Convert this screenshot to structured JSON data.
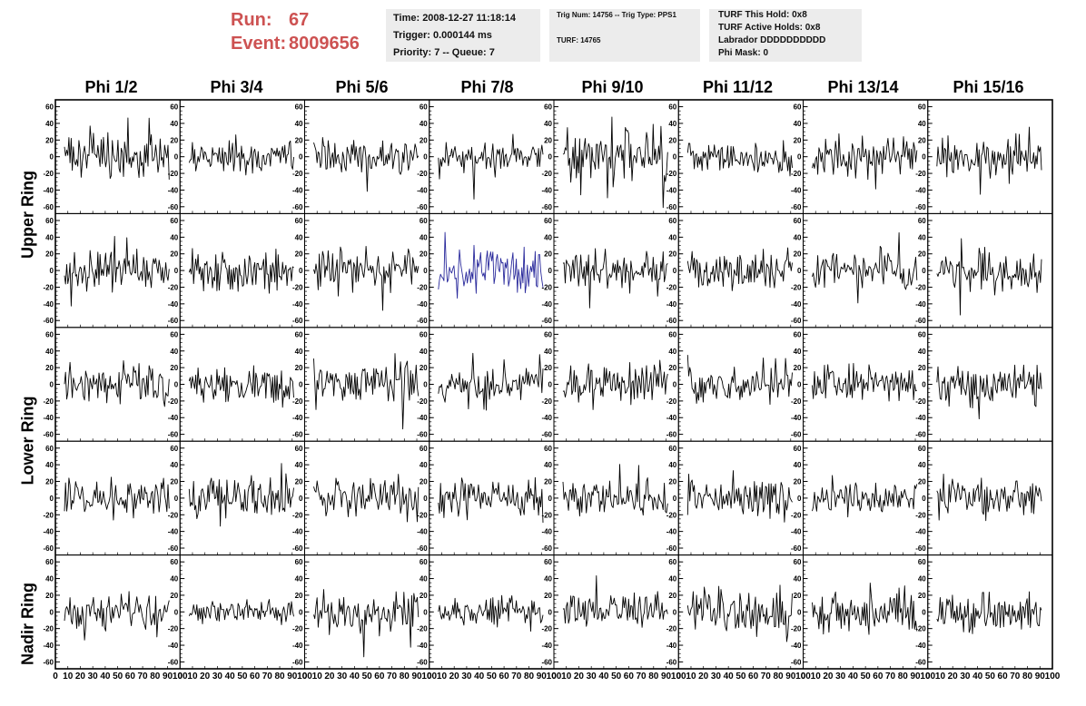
{
  "header": {
    "run_label": "Run:",
    "run_value": "67",
    "event_label": "Event:",
    "event_value": "8009656",
    "box1": [
      "Time: 2008-12-27 11:18:14",
      "Trigger: 0.000144 ms",
      "Priority: 7 -- Queue: 7"
    ],
    "box2": [
      "Trig Num: 14756 -- Trig Type: PPS1",
      "TURF: 14765"
    ],
    "box3": [
      "TURF This Hold: 0x8",
      "TURF Active Holds: 0x8",
      "Labrador DDDDDDDDDD",
      "Phi Mask: 0"
    ]
  },
  "columns": [
    "Phi 1/2",
    "Phi 3/4",
    "Phi 5/6",
    "Phi 7/8",
    "Phi 9/10",
    "Phi 11/12",
    "Phi 13/14",
    "Phi 15/16"
  ],
  "row_labels": [
    {
      "text": "Upper Ring"
    },
    {
      "text": "Lower Ring"
    },
    {
      "text": "Nadir Ring"
    }
  ],
  "colors": {
    "trace": "#000000",
    "highlight_trace": "#2a2a9c",
    "header_red": "#cd5252",
    "info_bg": "#ececec"
  },
  "chart_data": {
    "type": "line",
    "grid_rows": 5,
    "grid_cols": 8,
    "ylim": [
      -65,
      65
    ],
    "xlim": [
      0,
      100
    ],
    "y_ticks": [
      -60,
      -40,
      -20,
      0,
      20,
      40,
      60
    ],
    "y_tick_labels": [
      "-60",
      "-40",
      "-20",
      "0",
      "20",
      "40",
      "60"
    ],
    "x_tick_labels": [
      "0",
      "10",
      "20",
      "30",
      "40",
      "50",
      "60",
      "70",
      "80",
      "90",
      "100"
    ],
    "highlight_panel": {
      "row": 1,
      "col": 3
    },
    "samples": 95,
    "amplitudes": [
      [
        14,
        11,
        12,
        12,
        16,
        10,
        13,
        15
      ],
      [
        13,
        13,
        13,
        16,
        13,
        12,
        13,
        13
      ],
      [
        14,
        13,
        13,
        12,
        13,
        13,
        12,
        12
      ],
      [
        12,
        14,
        13,
        12,
        12,
        12,
        11,
        13
      ],
      [
        13,
        9,
        13,
        10,
        11,
        13,
        13,
        13
      ]
    ]
  }
}
